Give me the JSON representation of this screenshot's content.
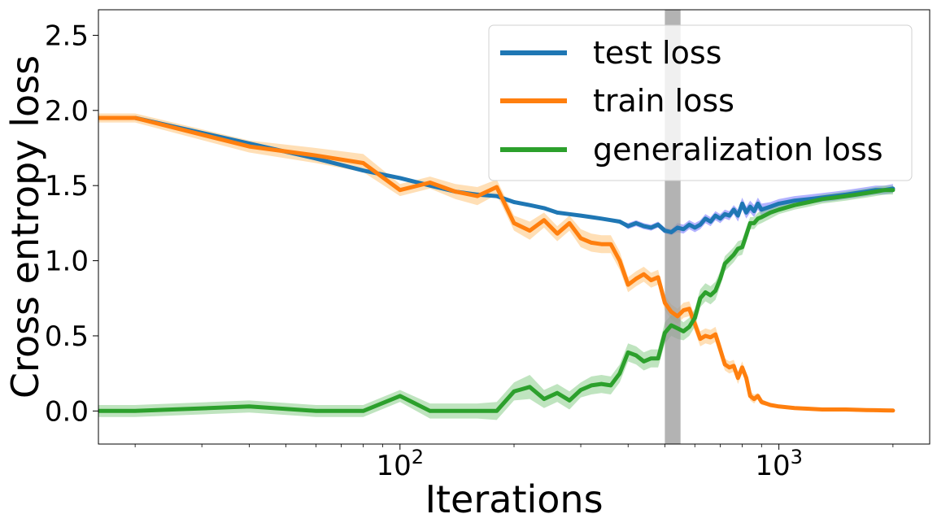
{
  "chart_data": {
    "type": "line",
    "xscale": "log",
    "xlabel": "Iterations",
    "ylabel": "Cross entropy loss",
    "xlim": [
      16,
      2500
    ],
    "ylim": [
      -0.22,
      2.67
    ],
    "yticks": [
      "0.0",
      "0.5",
      "1.0",
      "1.5",
      "2.0",
      "2.5"
    ],
    "ytick_values": [
      0.0,
      0.5,
      1.0,
      1.5,
      2.0,
      2.5
    ],
    "xticks": [
      {
        "base": "10",
        "exp": "2",
        "value": 100
      },
      {
        "base": "10",
        "exp": "3",
        "value": 1000
      }
    ],
    "grid": false,
    "legend_position": "top-right",
    "highlight_band": {
      "x_from": 500,
      "x_to": 550,
      "color": "#999999"
    },
    "series": [
      {
        "name": "test loss",
        "color": "#1f77b4",
        "band_color": "#6666ff",
        "x": [
          16,
          20,
          40,
          60,
          80,
          100,
          120,
          140,
          160,
          180,
          200,
          220,
          240,
          260,
          280,
          300,
          320,
          340,
          360,
          380,
          400,
          420,
          440,
          460,
          480,
          500,
          520,
          540,
          560,
          580,
          600,
          620,
          640,
          660,
          680,
          700,
          720,
          740,
          760,
          780,
          800,
          820,
          840,
          860,
          880,
          900,
          950,
          1000,
          1100,
          1200,
          1300,
          1400,
          1500,
          1600,
          1700,
          1800,
          1900,
          2000
        ],
        "values": [
          1.95,
          1.95,
          1.78,
          1.68,
          1.6,
          1.55,
          1.5,
          1.46,
          1.44,
          1.43,
          1.39,
          1.37,
          1.35,
          1.32,
          1.31,
          1.3,
          1.29,
          1.28,
          1.27,
          1.26,
          1.23,
          1.25,
          1.23,
          1.22,
          1.24,
          1.2,
          1.19,
          1.22,
          1.21,
          1.24,
          1.22,
          1.24,
          1.28,
          1.26,
          1.3,
          1.28,
          1.31,
          1.3,
          1.34,
          1.3,
          1.38,
          1.32,
          1.36,
          1.33,
          1.38,
          1.34,
          1.36,
          1.38,
          1.4,
          1.41,
          1.42,
          1.43,
          1.44,
          1.45,
          1.46,
          1.47,
          1.47,
          1.48
        ],
        "band": [
          0.01,
          0.01,
          0.01,
          0.01,
          0.01,
          0.01,
          0.01,
          0.01,
          0.01,
          0.01,
          0.01,
          0.01,
          0.01,
          0.01,
          0.01,
          0.01,
          0.01,
          0.01,
          0.01,
          0.01,
          0.02,
          0.02,
          0.02,
          0.02,
          0.02,
          0.02,
          0.02,
          0.03,
          0.03,
          0.03,
          0.03,
          0.03,
          0.03,
          0.03,
          0.03,
          0.03,
          0.03,
          0.03,
          0.03,
          0.04,
          0.04,
          0.04,
          0.04,
          0.04,
          0.04,
          0.04,
          0.03,
          0.03,
          0.03,
          0.03,
          0.03,
          0.03,
          0.03,
          0.03,
          0.03,
          0.03,
          0.03,
          0.03
        ]
      },
      {
        "name": "train loss",
        "color": "#ff7f0e",
        "band_color": "#ffbf6e",
        "x": [
          16,
          20,
          40,
          60,
          80,
          100,
          120,
          140,
          160,
          180,
          200,
          220,
          240,
          260,
          280,
          300,
          320,
          340,
          360,
          380,
          400,
          420,
          440,
          460,
          480,
          500,
          520,
          540,
          560,
          580,
          600,
          620,
          640,
          660,
          680,
          700,
          720,
          740,
          760,
          780,
          800,
          820,
          840,
          860,
          880,
          900,
          950,
          1000,
          1100,
          1200,
          1300,
          1400,
          1500,
          1600,
          1700,
          1800,
          1900,
          2000
        ],
        "values": [
          1.95,
          1.95,
          1.76,
          1.7,
          1.65,
          1.47,
          1.52,
          1.46,
          1.43,
          1.49,
          1.25,
          1.2,
          1.27,
          1.18,
          1.25,
          1.15,
          1.12,
          1.11,
          1.11,
          1.0,
          0.84,
          0.88,
          0.91,
          0.87,
          0.89,
          0.72,
          0.66,
          0.63,
          0.67,
          0.68,
          0.58,
          0.48,
          0.5,
          0.49,
          0.51,
          0.41,
          0.31,
          0.29,
          0.3,
          0.22,
          0.29,
          0.22,
          0.1,
          0.08,
          0.1,
          0.06,
          0.04,
          0.03,
          0.02,
          0.015,
          0.01,
          0.01,
          0.01,
          0.008,
          0.006,
          0.005,
          0.004,
          0.003
        ],
        "band": [
          0.03,
          0.03,
          0.04,
          0.05,
          0.06,
          0.04,
          0.04,
          0.05,
          0.06,
          0.05,
          0.05,
          0.06,
          0.05,
          0.05,
          0.05,
          0.06,
          0.06,
          0.06,
          0.06,
          0.06,
          0.05,
          0.05,
          0.05,
          0.05,
          0.05,
          0.05,
          0.05,
          0.05,
          0.05,
          0.05,
          0.05,
          0.05,
          0.05,
          0.05,
          0.05,
          0.05,
          0.04,
          0.04,
          0.04,
          0.04,
          0.04,
          0.03,
          0.03,
          0.03,
          0.02,
          0.02,
          0.01,
          0.01,
          0.01,
          0.01,
          0.005,
          0.005,
          0.005,
          0.004,
          0.004,
          0.003,
          0.003,
          0.003
        ]
      },
      {
        "name": "generalization loss",
        "color": "#2ca02c",
        "band_color": "#7fc97f",
        "x": [
          16,
          20,
          40,
          60,
          80,
          100,
          120,
          140,
          160,
          180,
          200,
          220,
          240,
          260,
          280,
          300,
          320,
          340,
          360,
          380,
          400,
          420,
          440,
          460,
          480,
          500,
          520,
          540,
          560,
          580,
          600,
          620,
          640,
          660,
          680,
          700,
          720,
          740,
          760,
          780,
          800,
          820,
          840,
          860,
          880,
          900,
          950,
          1000,
          1100,
          1200,
          1300,
          1400,
          1500,
          1600,
          1700,
          1800,
          1900,
          2000
        ],
        "values": [
          0.0,
          0.0,
          0.03,
          0.0,
          0.0,
          0.1,
          0.0,
          0.0,
          0.0,
          0.0,
          0.13,
          0.16,
          0.08,
          0.12,
          0.07,
          0.14,
          0.17,
          0.18,
          0.17,
          0.25,
          0.39,
          0.37,
          0.33,
          0.35,
          0.35,
          0.52,
          0.57,
          0.55,
          0.53,
          0.56,
          0.62,
          0.75,
          0.79,
          0.77,
          0.8,
          0.88,
          0.98,
          1.01,
          1.04,
          1.08,
          1.09,
          1.17,
          1.25,
          1.25,
          1.28,
          1.29,
          1.32,
          1.34,
          1.37,
          1.39,
          1.41,
          1.42,
          1.43,
          1.44,
          1.45,
          1.46,
          1.47,
          1.47
        ],
        "band": [
          0.04,
          0.04,
          0.04,
          0.04,
          0.04,
          0.04,
          0.05,
          0.05,
          0.05,
          0.06,
          0.06,
          0.08,
          0.06,
          0.06,
          0.06,
          0.05,
          0.06,
          0.06,
          0.06,
          0.06,
          0.06,
          0.06,
          0.06,
          0.06,
          0.06,
          0.07,
          0.07,
          0.07,
          0.06,
          0.06,
          0.06,
          0.06,
          0.06,
          0.06,
          0.06,
          0.05,
          0.05,
          0.05,
          0.05,
          0.05,
          0.05,
          0.05,
          0.04,
          0.04,
          0.04,
          0.04,
          0.04,
          0.03,
          0.03,
          0.03,
          0.03,
          0.03,
          0.03,
          0.03,
          0.03,
          0.03,
          0.03,
          0.03
        ]
      }
    ]
  }
}
